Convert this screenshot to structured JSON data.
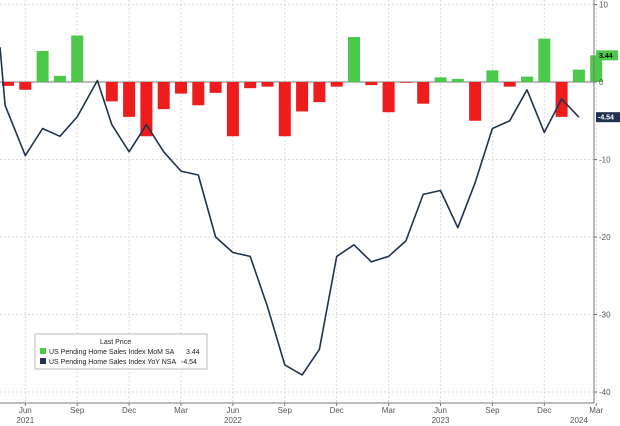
{
  "chart_data": {
    "type": "bar+line",
    "title": "",
    "xlabel": "",
    "ylabel": "",
    "ylim": [
      -40,
      10
    ],
    "yticks": [
      10,
      0,
      -10,
      -20,
      -30,
      -40
    ],
    "grid": true,
    "legend_position": "bottom-left",
    "legend_title": "Last Price",
    "x": [
      "2021-05",
      "2021-06",
      "2021-07",
      "2021-08",
      "2021-09",
      "2021-10",
      "2021-11",
      "2021-12",
      "2022-01",
      "2022-02",
      "2022-03",
      "2022-04",
      "2022-05",
      "2022-06",
      "2022-07",
      "2022-08",
      "2022-09",
      "2022-10",
      "2022-11",
      "2022-12",
      "2023-01",
      "2023-02",
      "2023-03",
      "2023-04",
      "2023-05",
      "2023-06",
      "2023-07",
      "2023-08",
      "2023-09",
      "2023-10",
      "2023-11",
      "2023-12",
      "2024-01",
      "2024-02",
      "2024-03"
    ],
    "x_tick_labels": [
      {
        "label": "Jun",
        "x": "2021-06"
      },
      {
        "label": "Sep",
        "x": "2021-09"
      },
      {
        "label": "Dec",
        "x": "2021-12"
      },
      {
        "label": "Mar",
        "x": "2022-03"
      },
      {
        "label": "Jun",
        "x": "2022-06"
      },
      {
        "label": "Sep",
        "x": "2022-09"
      },
      {
        "label": "Dec",
        "x": "2022-12"
      },
      {
        "label": "Mar",
        "x": "2023-03"
      },
      {
        "label": "Jun",
        "x": "2023-06"
      },
      {
        "label": "Sep",
        "x": "2023-09"
      },
      {
        "label": "Dec",
        "x": "2023-12"
      },
      {
        "label": "Mar",
        "x": "2024-03"
      }
    ],
    "year_labels": [
      {
        "label": "2021",
        "x": "2021-06"
      },
      {
        "label": "2022",
        "x": "2022-06"
      },
      {
        "label": "2023",
        "x": "2023-06"
      },
      {
        "label": "2024",
        "x": "2024-02"
      }
    ],
    "series": [
      {
        "name": "US Pending Home Sales Index MoM SA",
        "kind": "bar",
        "color_positive": "#4cc84a",
        "color_negative": "#ee1c1c",
        "last_value": "3.44",
        "values": [
          -0.5,
          -1.0,
          4.0,
          0.8,
          6.0,
          0,
          -2.5,
          -4.5,
          -7.0,
          -3.5,
          -1.5,
          -3.0,
          -1.4,
          -7.0,
          -0.8,
          -0.6,
          -7.0,
          -3.8,
          -2.6,
          -0.6,
          5.8,
          -0.4,
          -3.9,
          -0.1,
          -2.8,
          0.6,
          0.4,
          -5.0,
          1.5,
          -0.6,
          0.7,
          5.6,
          -4.5,
          1.6,
          3.44
        ]
      },
      {
        "name": "US Pending Home Sales Index YoY NSA",
        "kind": "line",
        "color": "#1f3350",
        "last_value": "-4.54",
        "points": [
          [
            "2021-05-01",
            4.5
          ],
          [
            "2021-05-10",
            -3.0
          ],
          [
            "2021-06-15",
            -9.5
          ],
          [
            "2021-07-15",
            -6.0
          ],
          [
            "2021-08-15",
            -7.0
          ],
          [
            "2021-09-15",
            -4.5
          ],
          [
            "2021-10-20",
            0.2
          ],
          [
            "2021-11-15",
            -5.5
          ],
          [
            "2021-12-15",
            -9.0
          ],
          [
            "2022-01-15",
            -5.5
          ],
          [
            "2022-02-15",
            -9.0
          ],
          [
            "2022-03-15",
            -11.5
          ],
          [
            "2022-04-15",
            -12.0
          ],
          [
            "2022-05-15",
            -20.0
          ],
          [
            "2022-06-15",
            -22.0
          ],
          [
            "2022-07-15",
            -22.5
          ],
          [
            "2022-08-15",
            -29.0
          ],
          [
            "2022-09-15",
            -36.5
          ],
          [
            "2022-10-15",
            -37.8
          ],
          [
            "2022-11-15",
            -34.5
          ],
          [
            "2022-12-15",
            -22.5
          ],
          [
            "2023-01-15",
            -21.0
          ],
          [
            "2023-02-15",
            -23.2
          ],
          [
            "2023-03-15",
            -22.5
          ],
          [
            "2023-04-15",
            -20.5
          ],
          [
            "2023-05-15",
            -14.5
          ],
          [
            "2023-06-15",
            -14.0
          ],
          [
            "2023-07-15",
            -18.8
          ],
          [
            "2023-08-15",
            -13.0
          ],
          [
            "2023-09-15",
            -6.0
          ],
          [
            "2023-10-15",
            -5.0
          ],
          [
            "2023-11-15",
            -1.0
          ],
          [
            "2023-12-15",
            -6.5
          ],
          [
            "2024-01-15",
            -2.2
          ],
          [
            "2024-02-15",
            -4.54
          ]
        ]
      }
    ]
  }
}
